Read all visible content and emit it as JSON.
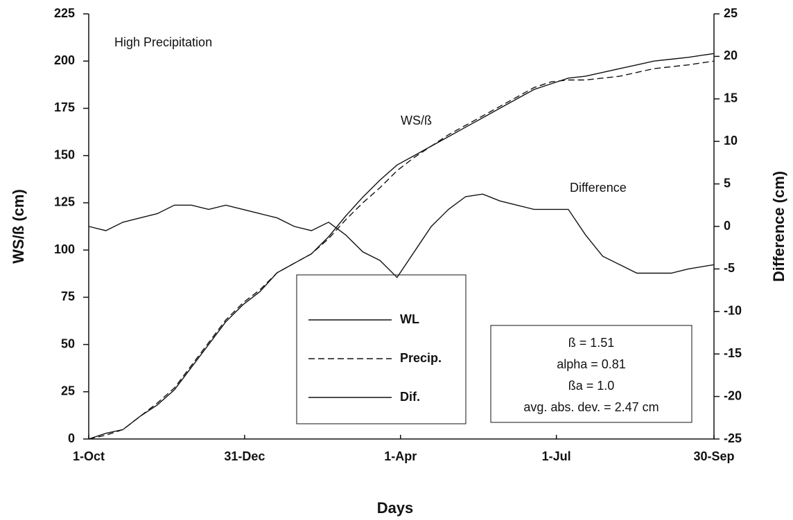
{
  "chart_data": {
    "type": "line",
    "x_label": "Days",
    "y_label": "WS/ß (cm)",
    "y2_label": "Difference (cm)",
    "annotations": [
      "High Precipitation",
      "WS/ß",
      "Difference"
    ],
    "parameters": [
      "ß = 1.51",
      "alpha = 0.81",
      "ßa = 1.0",
      "avg. abs. dev. = 2.47 cm"
    ],
    "x": [
      0,
      10,
      20,
      30,
      40,
      50,
      60,
      70,
      80,
      90,
      100,
      110,
      120,
      130,
      140,
      150,
      160,
      170,
      180,
      190,
      200,
      210,
      220,
      230,
      240,
      250,
      260,
      270,
      280,
      290,
      300,
      310,
      320,
      330,
      340,
      350,
      365
    ],
    "xlim": [
      0,
      365
    ],
    "xticks": [
      {
        "value": 0,
        "label": "1-Oct"
      },
      {
        "value": 91,
        "label": "31-Dec"
      },
      {
        "value": 182,
        "label": "1-Apr"
      },
      {
        "value": 273,
        "label": "1-Jul"
      },
      {
        "value": 365,
        "label": "30-Sep"
      }
    ],
    "ylim": [
      0,
      225
    ],
    "yticks": [
      0,
      25,
      50,
      75,
      100,
      125,
      150,
      175,
      200,
      225
    ],
    "y2lim": [
      -25,
      25
    ],
    "y2ticks": [
      -25,
      -20,
      -15,
      -10,
      -5,
      0,
      5,
      10,
      15,
      20,
      25
    ],
    "series": [
      {
        "name": "WL",
        "color": "#111111",
        "line_style": "solid",
        "values": [
          0,
          3,
          5,
          12,
          18,
          26,
          38,
          50,
          62,
          71,
          78,
          88,
          93,
          98,
          107,
          118,
          128,
          137,
          145,
          150,
          155,
          160,
          165,
          170,
          175,
          180,
          185,
          188,
          191,
          192,
          194,
          196,
          198,
          200,
          201,
          202,
          204
        ]
      },
      {
        "name": "Precip.",
        "color": "#111111",
        "line_style": "dashed",
        "values": [
          0,
          2,
          5,
          12,
          19,
          27,
          39,
          51,
          63,
          72,
          79,
          88,
          93,
          98,
          106,
          116,
          125,
          133,
          142,
          149,
          155,
          161,
          166,
          171,
          176,
          181,
          186,
          189,
          190,
          190,
          191,
          192,
          194,
          196,
          197,
          198,
          200
        ]
      },
      {
        "name": "Dif.",
        "color": "#111111",
        "line_style": "solid",
        "axis": "y2",
        "values": [
          0,
          -0.5,
          0.5,
          1,
          1.5,
          2.5,
          2.5,
          2,
          2.5,
          2,
          1.5,
          1,
          0,
          -0.5,
          0.5,
          -1,
          -3,
          -4,
          -6,
          -3,
          0,
          2,
          3.5,
          3.8,
          3,
          2.5,
          2,
          2,
          2,
          -1,
          -3.5,
          -4.5,
          -5.5,
          -5.5,
          -5.5,
          -5,
          -4.5
        ]
      }
    ]
  }
}
